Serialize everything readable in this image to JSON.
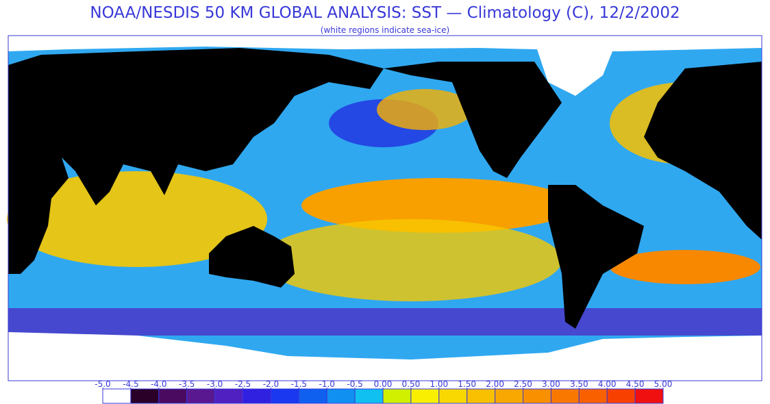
{
  "header": {
    "title": "NOAA/NESDIS 50 KM GLOBAL ANALYSIS: SST — Climatology (C), 12/2/2002",
    "subtitle": "(white regions indicate sea-ice)"
  },
  "legend": {
    "ticks": [
      {
        "value": -5,
        "label": "-5.0"
      },
      {
        "value": -4.5,
        "label": "-4.5"
      },
      {
        "value": -4,
        "label": "-4.0"
      },
      {
        "value": -3.5,
        "label": "-3.5"
      },
      {
        "value": -3,
        "label": "-3.0"
      },
      {
        "value": -2.5,
        "label": "-2.5"
      },
      {
        "value": -2,
        "label": "-2.0"
      },
      {
        "value": -1.5,
        "label": "-1.5"
      },
      {
        "value": -1,
        "label": "-1.0"
      },
      {
        "value": -0.5,
        "label": "-0.5"
      },
      {
        "value": 0,
        "label": "0.00"
      },
      {
        "value": 0.5,
        "label": "0.50"
      },
      {
        "value": 1,
        "label": "1.00"
      },
      {
        "value": 1.5,
        "label": "1.50"
      },
      {
        "value": 2,
        "label": "2.00"
      },
      {
        "value": 2.5,
        "label": "2.50"
      },
      {
        "value": 3,
        "label": "3.00"
      },
      {
        "value": 3.5,
        "label": "3.50"
      },
      {
        "value": 4,
        "label": "4.00"
      },
      {
        "value": 4.5,
        "label": "4.50"
      },
      {
        "value": 5,
        "label": "5.00"
      }
    ],
    "colors": [
      "#ffffff",
      "#2a0028",
      "#4a0a60",
      "#5a1890",
      "#5020c0",
      "#3020e0",
      "#1a38f0",
      "#1060f0",
      "#1090f0",
      "#10c0f0",
      "#d0f000",
      "#f8f000",
      "#f8d800",
      "#f8c000",
      "#f8a800",
      "#f89000",
      "#f87800",
      "#f86000",
      "#f84000",
      "#f01010"
    ]
  }
}
